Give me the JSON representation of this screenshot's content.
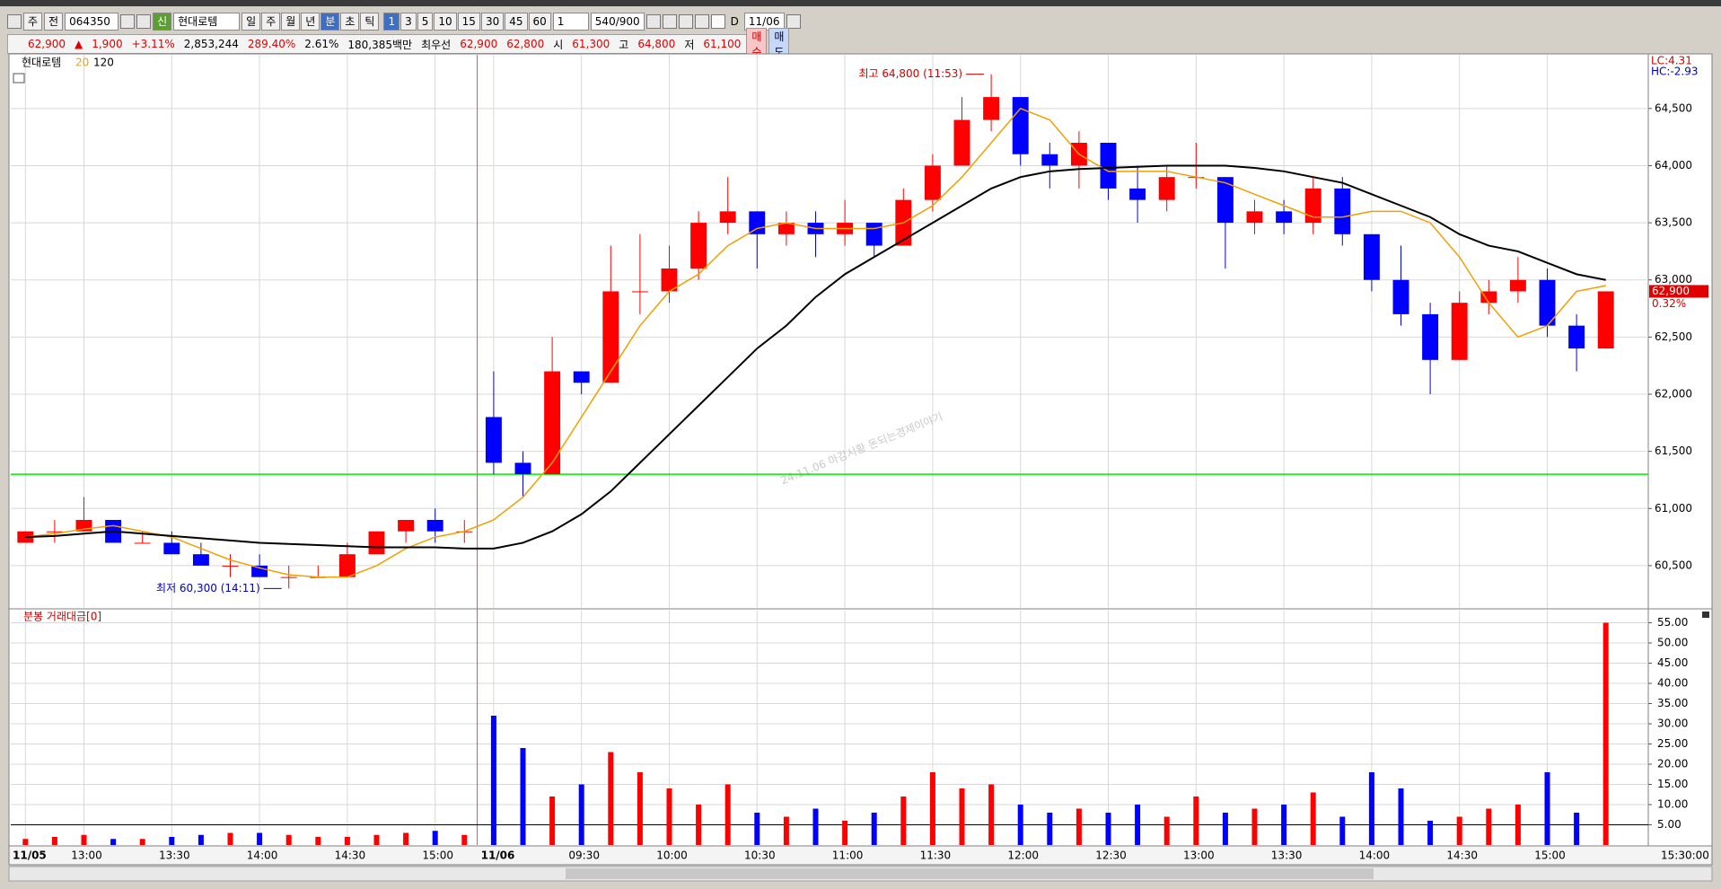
{
  "toolbar": {
    "period_type": "주",
    "mode": "전",
    "code": "064350",
    "badge": "신",
    "name": "현대로템",
    "periods": [
      "일",
      "주",
      "월",
      "년",
      "분",
      "초",
      "틱"
    ],
    "intervals": [
      "1",
      "3",
      "5",
      "10",
      "15",
      "30",
      "45",
      "60"
    ],
    "multiplier": "1",
    "count": "540/900",
    "d_label": "D",
    "date": "11/06"
  },
  "quote": {
    "price": "62,900",
    "arrow": "▲",
    "change": "1,900",
    "change_pct": "+3.11%",
    "volume": "2,853,244",
    "volume_ratio": "289.40%",
    "turnover": "2.61%",
    "amount": "180,385백만",
    "best_label": "최우선",
    "best_ask": "62,900",
    "best_bid": "62,800",
    "open_label": "시",
    "open": "61,300",
    "high_label": "고",
    "high": "64,800",
    "low_label": "저",
    "low": "61,100",
    "buy": "매수",
    "sell": "매도"
  },
  "chart_data": [
    {
      "type": "candlestick",
      "legend_name": "현대로템",
      "categories": [
        "11/05",
        null,
        "13:00",
        null,
        null,
        "13:30",
        null,
        null,
        "14:00",
        null,
        null,
        "14:30",
        null,
        null,
        "15:00",
        null,
        "11/06",
        null,
        null,
        "09:30",
        null,
        null,
        "10:00",
        null,
        null,
        "10:30",
        null,
        null,
        "11:00",
        null,
        null,
        "11:30",
        null,
        null,
        "12:00",
        null,
        null,
        "12:30",
        null,
        null,
        "13:00",
        null,
        null,
        "13:30",
        null,
        null,
        "14:00",
        null,
        null,
        "14:30",
        null,
        null,
        "15:00",
        null,
        null
      ],
      "open": [
        60700,
        60800,
        60800,
        60900,
        60700,
        60700,
        60600,
        60500,
        60500,
        60400,
        60400,
        60400,
        60600,
        60800,
        60900,
        60800,
        61800,
        61400,
        61300,
        62200,
        62100,
        62900,
        62900,
        63100,
        63500,
        63600,
        63400,
        63500,
        63400,
        63500,
        63300,
        63700,
        64000,
        64400,
        64600,
        64100,
        64000,
        64200,
        63800,
        63700,
        63900,
        63900,
        63500,
        63600,
        63500,
        63800,
        63400,
        63000,
        62700,
        62300,
        62800,
        62900,
        63000,
        62600,
        62400
      ],
      "high": [
        60800,
        60900,
        61100,
        60900,
        60800,
        60800,
        60700,
        60600,
        60600,
        60500,
        60500,
        60700,
        60800,
        60900,
        61000,
        60900,
        62200,
        61500,
        62500,
        62200,
        63300,
        63400,
        63300,
        63600,
        63900,
        63600,
        63600,
        63600,
        63700,
        63500,
        63800,
        64100,
        64600,
        64800,
        64600,
        64200,
        64300,
        64200,
        64000,
        64000,
        64200,
        63900,
        63700,
        63700,
        63900,
        63900,
        63400,
        63300,
        62800,
        62900,
        63000,
        63200,
        63100,
        62700,
        62900
      ],
      "low": [
        60700,
        60700,
        60800,
        60700,
        60700,
        60600,
        60500,
        60400,
        60400,
        60300,
        60400,
        60400,
        60600,
        60700,
        60700,
        60700,
        61300,
        61100,
        61300,
        62000,
        62100,
        62700,
        62800,
        63000,
        63400,
        63100,
        63300,
        63200,
        63300,
        63200,
        63300,
        63600,
        64000,
        64300,
        64000,
        63800,
        63800,
        63700,
        63500,
        63600,
        63800,
        63100,
        63400,
        63400,
        63400,
        63300,
        62900,
        62600,
        62000,
        62300,
        62700,
        62800,
        62500,
        62200,
        62400
      ],
      "close": [
        60800,
        60800,
        60900,
        60700,
        60700,
        60600,
        60500,
        60500,
        60400,
        60400,
        60400,
        60600,
        60800,
        60900,
        60800,
        60800,
        61400,
        61300,
        62200,
        62100,
        62900,
        62900,
        63100,
        63500,
        63600,
        63400,
        63500,
        63400,
        63500,
        63300,
        63700,
        64000,
        64400,
        64600,
        64100,
        64000,
        64200,
        63800,
        63700,
        63900,
        63900,
        63500,
        63600,
        63500,
        63800,
        63400,
        63000,
        62700,
        62300,
        62800,
        62900,
        63000,
        62600,
        62400,
        62900
      ],
      "up_color": "#ff0000",
      "down_color": "#0000ff",
      "series": [
        {
          "name": "20",
          "color": "#f0a000",
          "values": [
            60750,
            60780,
            60820,
            60850,
            60800,
            60750,
            60650,
            60550,
            60480,
            60420,
            60400,
            60400,
            60500,
            60650,
            60750,
            60800,
            60900,
            61100,
            61400,
            61800,
            62200,
            62600,
            62900,
            63050,
            63300,
            63450,
            63500,
            63450,
            63450,
            63450,
            63500,
            63650,
            63900,
            64200,
            64500,
            64400,
            64100,
            63950,
            63950,
            63950,
            63900,
            63850,
            63750,
            63650,
            63550,
            63550,
            63600,
            63600,
            63500,
            63200,
            62800,
            62500,
            62600,
            62900,
            62950
          ]
        },
        {
          "name": "120",
          "color": "#000000",
          "values": [
            60750,
            60760,
            60780,
            60800,
            60780,
            60760,
            60740,
            60720,
            60700,
            60690,
            60680,
            60670,
            60660,
            60660,
            60660,
            60650,
            60650,
            60700,
            60800,
            60950,
            61150,
            61400,
            61650,
            61900,
            62150,
            62400,
            62600,
            62850,
            63050,
            63200,
            63350,
            63500,
            63650,
            63800,
            63900,
            63950,
            63970,
            63980,
            63990,
            64000,
            64000,
            64000,
            63980,
            63950,
            63900,
            63850,
            63750,
            63650,
            63550,
            63400,
            63300,
            63250,
            63150,
            63050,
            63000
          ]
        }
      ],
      "ylim": [
        60130,
        64970
      ],
      "yticks": [
        {
          "value": 60500,
          "label": "60,500"
        },
        {
          "value": 61000,
          "label": "61,000"
        },
        {
          "value": 61500,
          "label": "61,500"
        },
        {
          "value": 62000,
          "label": "62,000"
        },
        {
          "value": 62500,
          "label": "62,500"
        },
        {
          "value": 63000,
          "label": "63,000"
        },
        {
          "value": 63500,
          "label": "63,500"
        },
        {
          "value": 64000,
          "label": "64,000"
        },
        {
          "value": 64500,
          "label": "64,500"
        }
      ],
      "grid": true,
      "reference_line": 61300,
      "reference_color": "#00ee00",
      "annotations": {
        "high": "최고 64,800 (11:53)",
        "low": "최저 60,300 (14:11)"
      },
      "right_labels": [
        "LC:4.31",
        "HC:-2.93"
      ],
      "last_price": {
        "value": 62900,
        "label": "62,900"
      },
      "last_change_label": "0.32%",
      "watermark": "24.11.06 마감시황 돈되는경제이야기",
      "last_time_label": "15:30:00"
    },
    {
      "type": "bar",
      "title": "분봉 거래대금[0]",
      "values": [
        1.5,
        2,
        2.5,
        1.5,
        1.5,
        2,
        2.5,
        3,
        3,
        2.5,
        2,
        2,
        2.5,
        3,
        3.5,
        2.5,
        32,
        24,
        12,
        15,
        23,
        18,
        14,
        10,
        15,
        8,
        7,
        9,
        6,
        8,
        12,
        18,
        14,
        15,
        10,
        8,
        9,
        8,
        10,
        7,
        12,
        8,
        9,
        10,
        13,
        7,
        18,
        14,
        6,
        7,
        9,
        10,
        18,
        8,
        55
      ],
      "ylim": [
        0,
        58
      ],
      "yticks": [
        {
          "value": 5,
          "label": "5.00"
        },
        {
          "value": 10,
          "label": "10.00"
        },
        {
          "value": 15,
          "label": "15.00"
        },
        {
          "value": 20,
          "label": "20.00"
        },
        {
          "value": 25,
          "label": "25.00"
        },
        {
          "value": 30,
          "label": "30.00"
        },
        {
          "value": 35,
          "label": "35.00"
        },
        {
          "value": 40,
          "label": "40.00"
        },
        {
          "value": 45,
          "label": "45.00"
        },
        {
          "value": 50,
          "label": "50.00"
        },
        {
          "value": 55,
          "label": "55.00"
        }
      ],
      "grid": true,
      "reference_line": 5
    }
  ]
}
